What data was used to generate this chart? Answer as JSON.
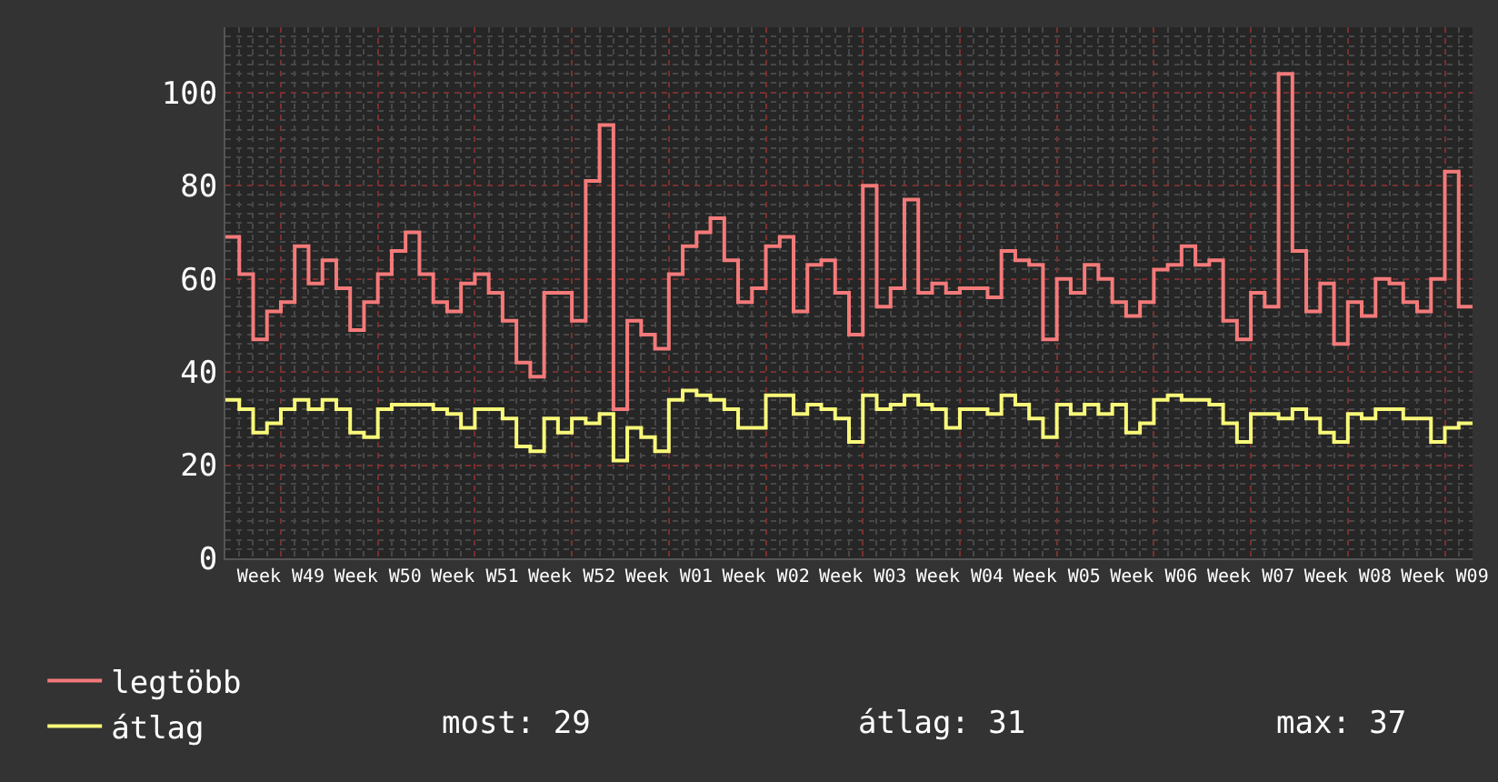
{
  "chart_data": {
    "type": "step",
    "categories": [
      null,
      null,
      null,
      null,
      "Week W49",
      null,
      null,
      null,
      null,
      null,
      null,
      "Week W50",
      null,
      null,
      null,
      null,
      null,
      null,
      "Week W51",
      null,
      null,
      null,
      null,
      null,
      null,
      "Week W52",
      null,
      null,
      null,
      null,
      null,
      null,
      "Week W01",
      null,
      null,
      null,
      null,
      null,
      null,
      "Week W02",
      null,
      null,
      null,
      null,
      null,
      null,
      "Week W03",
      null,
      null,
      null,
      null,
      null,
      null,
      "Week W04",
      null,
      null,
      null,
      null,
      null,
      null,
      "Week W05",
      null,
      null,
      null,
      null,
      null,
      null,
      "Week W06",
      null,
      null,
      null,
      null,
      null,
      null,
      "Week W07",
      null,
      null,
      null,
      null,
      null,
      null,
      "Week W08",
      null,
      null,
      null,
      null,
      null,
      null,
      "Week W09",
      null,
      null
    ],
    "series": [
      {
        "name": "legtöbb",
        "color": "#f47a7a",
        "values": [
          69,
          61,
          47,
          53,
          55,
          67,
          59,
          64,
          58,
          49,
          55,
          61,
          66,
          70,
          61,
          55,
          53,
          59,
          61,
          57,
          51,
          42,
          39,
          57,
          57,
          51,
          81,
          93,
          32,
          51,
          48,
          45,
          61,
          67,
          70,
          73,
          64,
          55,
          58,
          67,
          69,
          53,
          63,
          64,
          57,
          48,
          80,
          54,
          58,
          77,
          57,
          59,
          57,
          58,
          58,
          56,
          66,
          64,
          63,
          47,
          60,
          57,
          63,
          60,
          55,
          52,
          55,
          62,
          63,
          67,
          63,
          64,
          51,
          47,
          57,
          54,
          104,
          66,
          53,
          59,
          46,
          55,
          52,
          60,
          59,
          55,
          53,
          60,
          83,
          54,
          54
        ]
      },
      {
        "name": "átlag",
        "color": "#f8f87a",
        "values": [
          34,
          32,
          27,
          29,
          32,
          34,
          32,
          34,
          32,
          27,
          26,
          32,
          33,
          33,
          33,
          32,
          31,
          28,
          32,
          32,
          30,
          24,
          23,
          30,
          27,
          30,
          29,
          31,
          21,
          28,
          26,
          23,
          34,
          36,
          35,
          34,
          32,
          28,
          28,
          35,
          35,
          31,
          33,
          32,
          30,
          25,
          35,
          32,
          33,
          35,
          33,
          32,
          28,
          32,
          32,
          31,
          35,
          33,
          30,
          26,
          33,
          31,
          33,
          31,
          33,
          27,
          29,
          34,
          35,
          34,
          34,
          33,
          29,
          25,
          31,
          31,
          30,
          32,
          30,
          27,
          25,
          31,
          30,
          32,
          32,
          30,
          30,
          25,
          28,
          29,
          29
        ]
      }
    ],
    "ylim": [
      0,
      114
    ],
    "yticks": [
      0,
      20,
      40,
      60,
      80,
      100
    ],
    "grid": true,
    "legend": "bottom left",
    "annotations": [
      "most: 29",
      "átlag: 31",
      "max: 37"
    ]
  }
}
